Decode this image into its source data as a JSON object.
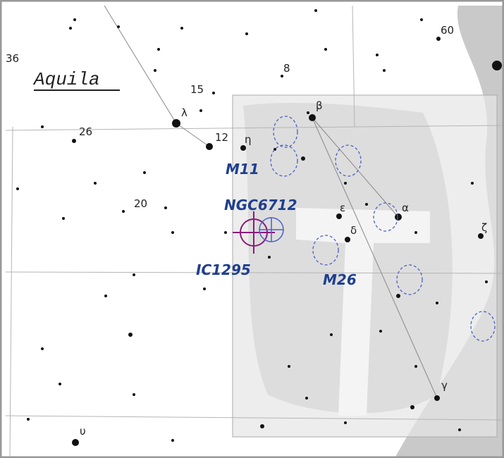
{
  "constellation": "Aquila",
  "star_labels": [
    "36",
    "15",
    "8",
    "60",
    "26",
    "12",
    "η",
    "λ",
    "20",
    "β",
    "α",
    "ε",
    "δ",
    "ζ",
    "γ",
    "υ"
  ],
  "objects": [
    "M11",
    "NGC6712",
    "IC1295",
    "M26"
  ]
}
